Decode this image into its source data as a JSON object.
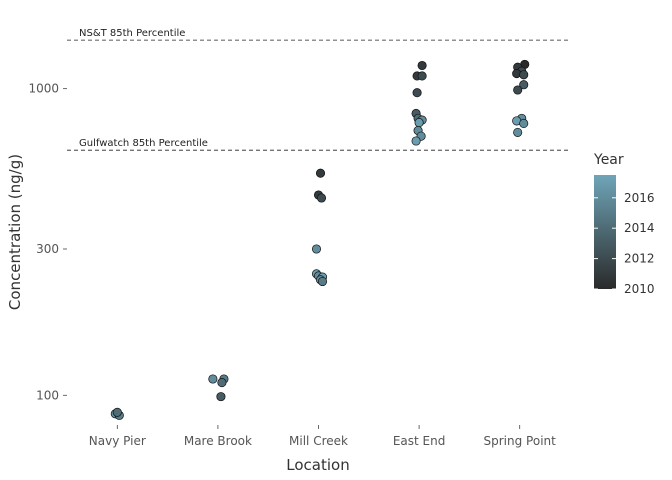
{
  "chart_data": {
    "type": "scatter",
    "xlabel": "Location",
    "ylabel": "Concentration (ng/g)",
    "y_scale": "log10",
    "ylim": [
      80,
      1700
    ],
    "y_ticks": [
      100,
      300,
      1000
    ],
    "y_tick_labels": [
      "100",
      "300",
      "1000"
    ],
    "categories": [
      "Navy Pier",
      "Mare Brook",
      "Mill Creek",
      "East End",
      "Spring Point"
    ],
    "grid": false,
    "reference_lines": [
      {
        "label": "NS&T 85th Percentile",
        "value": 1440
      },
      {
        "label": "Gulfwatch 85th Percentile",
        "value": 630
      }
    ],
    "color_scale": {
      "title": "Year",
      "min": 2010,
      "max": 2017.5,
      "ticks": [
        2010,
        2012,
        2014,
        2016
      ],
      "low_color": "#2a2a2a",
      "high_color": "#6fa5b8"
    },
    "legend_position": "right",
    "points": [
      {
        "category": "Navy Pier",
        "jitter": -0.02,
        "y": 87,
        "year": 2016
      },
      {
        "category": "Navy Pier",
        "jitter": 0.02,
        "y": 86,
        "year": 2015
      },
      {
        "category": "Navy Pier",
        "jitter": 0.0,
        "y": 88,
        "year": 2014
      },
      {
        "category": "Mare Brook",
        "jitter": -0.05,
        "y": 113,
        "year": 2016
      },
      {
        "category": "Mare Brook",
        "jitter": 0.06,
        "y": 113,
        "year": 2015
      },
      {
        "category": "Mare Brook",
        "jitter": 0.04,
        "y": 110,
        "year": 2014
      },
      {
        "category": "Mare Brook",
        "jitter": 0.03,
        "y": 99,
        "year": 2013
      },
      {
        "category": "Mill Creek",
        "jitter": 0.02,
        "y": 530,
        "year": 2011
      },
      {
        "category": "Mill Creek",
        "jitter": 0.0,
        "y": 450,
        "year": 2011
      },
      {
        "category": "Mill Creek",
        "jitter": 0.03,
        "y": 440,
        "year": 2012
      },
      {
        "category": "Mill Creek",
        "jitter": -0.02,
        "y": 300,
        "year": 2016
      },
      {
        "category": "Mill Creek",
        "jitter": -0.02,
        "y": 249,
        "year": 2017
      },
      {
        "category": "Mill Creek",
        "jitter": 0.0,
        "y": 245,
        "year": 2016
      },
      {
        "category": "Mill Creek",
        "jitter": 0.04,
        "y": 243,
        "year": 2017
      },
      {
        "category": "Mill Creek",
        "jitter": 0.02,
        "y": 238,
        "year": 2016
      },
      {
        "category": "Mill Creek",
        "jitter": 0.04,
        "y": 235,
        "year": 2015
      },
      {
        "category": "East End",
        "jitter": 0.03,
        "y": 1190,
        "year": 2011
      },
      {
        "category": "East End",
        "jitter": -0.02,
        "y": 1100,
        "year": 2011
      },
      {
        "category": "East End",
        "jitter": 0.03,
        "y": 1100,
        "year": 2012
      },
      {
        "category": "East End",
        "jitter": -0.02,
        "y": 970,
        "year": 2012
      },
      {
        "category": "East End",
        "jitter": -0.03,
        "y": 830,
        "year": 2013
      },
      {
        "category": "East End",
        "jitter": -0.01,
        "y": 800,
        "year": 2014
      },
      {
        "category": "East End",
        "jitter": 0.03,
        "y": 790,
        "year": 2016
      },
      {
        "category": "East End",
        "jitter": 0.0,
        "y": 775,
        "year": 2017
      },
      {
        "category": "East End",
        "jitter": -0.01,
        "y": 730,
        "year": 2016
      },
      {
        "category": "East End",
        "jitter": 0.02,
        "y": 700,
        "year": 2016
      },
      {
        "category": "East End",
        "jitter": -0.03,
        "y": 675,
        "year": 2017
      },
      {
        "category": "Spring Point",
        "jitter": 0.05,
        "y": 1200,
        "year": 2010
      },
      {
        "category": "Spring Point",
        "jitter": -0.02,
        "y": 1175,
        "year": 2011
      },
      {
        "category": "Spring Point",
        "jitter": 0.02,
        "y": 1140,
        "year": 2012
      },
      {
        "category": "Spring Point",
        "jitter": -0.03,
        "y": 1120,
        "year": 2011
      },
      {
        "category": "Spring Point",
        "jitter": 0.04,
        "y": 1110,
        "year": 2012
      },
      {
        "category": "Spring Point",
        "jitter": 0.04,
        "y": 1030,
        "year": 2013
      },
      {
        "category": "Spring Point",
        "jitter": -0.02,
        "y": 990,
        "year": 2012
      },
      {
        "category": "Spring Point",
        "jitter": 0.02,
        "y": 800,
        "year": 2016
      },
      {
        "category": "Spring Point",
        "jitter": -0.03,
        "y": 785,
        "year": 2017
      },
      {
        "category": "Spring Point",
        "jitter": 0.04,
        "y": 770,
        "year": 2016
      },
      {
        "category": "Spring Point",
        "jitter": -0.02,
        "y": 720,
        "year": 2016
      }
    ]
  }
}
